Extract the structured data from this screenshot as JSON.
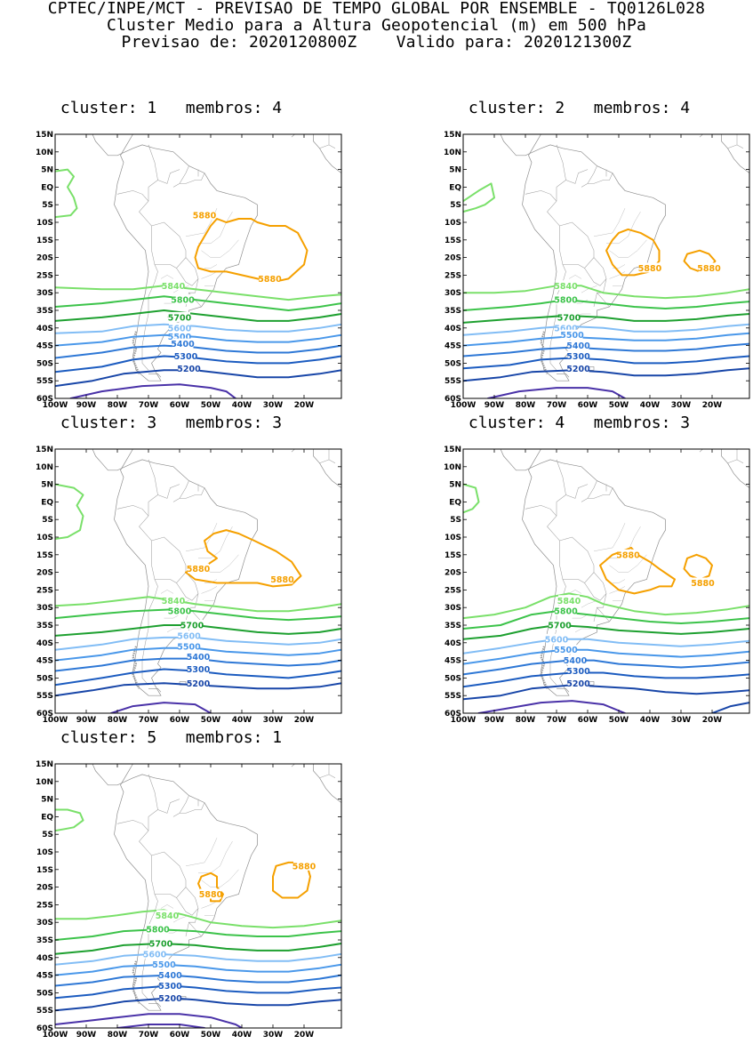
{
  "header": {
    "line1": "CPTEC/INPE/MCT - PREVISAO DE TEMPO GLOBAL POR ENSEMBLE - TQ0126L028",
    "line2": "Cluster Medio para a Altura Geopotencial (m) em 500 hPa",
    "line3": "Previsao de: 2020120800Z    Valido para: 2020121300Z"
  },
  "axes": {
    "lat_labels": [
      "15N",
      "10N",
      "5N",
      "EQ",
      "5S",
      "10S",
      "15S",
      "20S",
      "25S",
      "30S",
      "35S",
      "40S",
      "45S",
      "50S",
      "55S",
      "60S"
    ],
    "lon_labels": [
      "100W",
      "90W",
      "80W",
      "70W",
      "60W",
      "50W",
      "40W",
      "30W",
      "20W"
    ]
  },
  "contour_colors": {
    "5880": "#f5a000",
    "5840": "#7ae06a",
    "5800": "#3cc34a",
    "5700": "#1ea030",
    "5600": "#82bdf5",
    "5500": "#4a98ea",
    "5400": "#2e78d6",
    "5300": "#1c5cc0",
    "5200": "#1846a8",
    "deep": "#4a32a8"
  },
  "panels": [
    {
      "title": "cluster: 1   membros: 4",
      "labels": [
        {
          "text": "5880",
          "lon": -52,
          "lat": -8,
          "c": "5880"
        },
        {
          "text": "5880",
          "lon": -31,
          "lat": -26,
          "c": "5880"
        },
        {
          "text": "5840",
          "lon": -62,
          "lat": -28,
          "c": "5840"
        },
        {
          "text": "5800",
          "lon": -59,
          "lat": -32,
          "c": "5800"
        },
        {
          "text": "5700",
          "lon": -60,
          "lat": -37,
          "c": "5700"
        },
        {
          "text": "5600",
          "lon": -60,
          "lat": -40,
          "c": "5600"
        },
        {
          "text": "5500",
          "lon": -60,
          "lat": -42.5,
          "c": "5500"
        },
        {
          "text": "5400",
          "lon": -59,
          "lat": -44.5,
          "c": "5400"
        },
        {
          "text": "5300",
          "lon": -58,
          "lat": -48,
          "c": "5300"
        },
        {
          "text": "5200",
          "lon": -57,
          "lat": -51.5,
          "c": "5200"
        }
      ]
    },
    {
      "title": "cluster: 2   membros: 4",
      "labels": [
        {
          "text": "5880",
          "lon": -40,
          "lat": -23,
          "c": "5880"
        },
        {
          "text": "5880",
          "lon": -21,
          "lat": -23,
          "c": "5880"
        },
        {
          "text": "5840",
          "lon": -67,
          "lat": -28,
          "c": "5840"
        },
        {
          "text": "5800",
          "lon": -67,
          "lat": -32,
          "c": "5800"
        },
        {
          "text": "5700",
          "lon": -66,
          "lat": -37,
          "c": "5700"
        },
        {
          "text": "5600",
          "lon": -67,
          "lat": -40,
          "c": "5600"
        },
        {
          "text": "5500",
          "lon": -65,
          "lat": -42,
          "c": "5500"
        },
        {
          "text": "5400",
          "lon": -63,
          "lat": -45,
          "c": "5400"
        },
        {
          "text": "5300",
          "lon": -63,
          "lat": -48,
          "c": "5300"
        },
        {
          "text": "5200",
          "lon": -63,
          "lat": -51.5,
          "c": "5200"
        }
      ]
    },
    {
      "title": "cluster: 3   membros: 3",
      "labels": [
        {
          "text": "5880",
          "lon": -54,
          "lat": -19,
          "c": "5880"
        },
        {
          "text": "5880",
          "lon": -27,
          "lat": -22,
          "c": "5880"
        },
        {
          "text": "5840",
          "lon": -62,
          "lat": -28,
          "c": "5840"
        },
        {
          "text": "5800",
          "lon": -60,
          "lat": -31,
          "c": "5800"
        },
        {
          "text": "5700",
          "lon": -56,
          "lat": -35,
          "c": "5700"
        },
        {
          "text": "5600",
          "lon": -57,
          "lat": -38,
          "c": "5600"
        },
        {
          "text": "5500",
          "lon": -57,
          "lat": -41,
          "c": "5500"
        },
        {
          "text": "5400",
          "lon": -54,
          "lat": -44,
          "c": "5400"
        },
        {
          "text": "5300",
          "lon": -54,
          "lat": -47.5,
          "c": "5300"
        },
        {
          "text": "5200",
          "lon": -54,
          "lat": -51.5,
          "c": "5200"
        }
      ]
    },
    {
      "title": "cluster: 4   membros: 3",
      "labels": [
        {
          "text": "5880",
          "lon": -47,
          "lat": -15,
          "c": "5880"
        },
        {
          "text": "5880",
          "lon": -23,
          "lat": -23,
          "c": "5880"
        },
        {
          "text": "5840",
          "lon": -66,
          "lat": -28,
          "c": "5840"
        },
        {
          "text": "5800",
          "lon": -67,
          "lat": -31,
          "c": "5800"
        },
        {
          "text": "5700",
          "lon": -69,
          "lat": -35,
          "c": "5700"
        },
        {
          "text": "5600",
          "lon": -70,
          "lat": -39,
          "c": "5600"
        },
        {
          "text": "5500",
          "lon": -67,
          "lat": -42,
          "c": "5500"
        },
        {
          "text": "5400",
          "lon": -64,
          "lat": -45,
          "c": "5400"
        },
        {
          "text": "5300",
          "lon": -63,
          "lat": -48,
          "c": "5300"
        },
        {
          "text": "5200",
          "lon": -63,
          "lat": -51.5,
          "c": "5200"
        }
      ]
    },
    {
      "title": "cluster: 5   membros: 1",
      "labels": [
        {
          "text": "5880",
          "lon": -50,
          "lat": -22,
          "c": "5880"
        },
        {
          "text": "5880",
          "lon": -20,
          "lat": -14,
          "c": "5880"
        },
        {
          "text": "5840",
          "lon": -64,
          "lat": -28,
          "c": "5840"
        },
        {
          "text": "5800",
          "lon": -67,
          "lat": -32,
          "c": "5800"
        },
        {
          "text": "5700",
          "lon": -66,
          "lat": -36,
          "c": "5700"
        },
        {
          "text": "5600",
          "lon": -68,
          "lat": -39,
          "c": "5600"
        },
        {
          "text": "5500",
          "lon": -65,
          "lat": -42,
          "c": "5500"
        },
        {
          "text": "5400",
          "lon": -63,
          "lat": -45,
          "c": "5400"
        },
        {
          "text": "5300",
          "lon": -63,
          "lat": -48,
          "c": "5300"
        },
        {
          "text": "5200",
          "lon": -63,
          "lat": -51.5,
          "c": "5200"
        }
      ]
    }
  ]
}
